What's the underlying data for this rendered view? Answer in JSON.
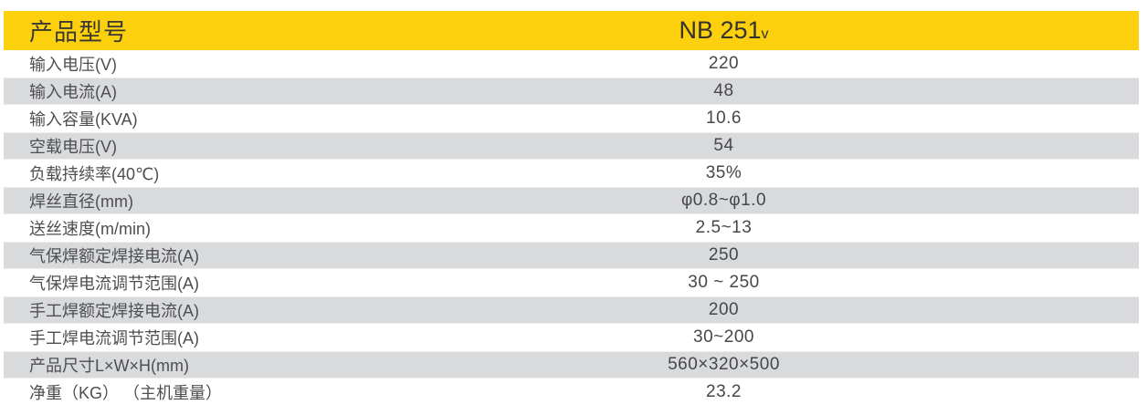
{
  "table": {
    "header": {
      "label": "产品型号",
      "model": "NB 251",
      "model_suffix": "v"
    },
    "rows": [
      {
        "label": "输入电压(V)",
        "value": "220"
      },
      {
        "label": "输入电流(A)",
        "value": "48"
      },
      {
        "label": "输入容量(KVA)",
        "value": "10.6"
      },
      {
        "label": "空载电压(V)",
        "value": "54"
      },
      {
        "label": "负载持续率(40℃)",
        "value": "35%"
      },
      {
        "label": "焊丝直径(mm)",
        "value": "φ0.8~φ1.0"
      },
      {
        "label": "送丝速度(m/min)",
        "value": "2.5~13"
      },
      {
        "label": "气保焊额定焊接电流(A)",
        "value": "250"
      },
      {
        "label": "气保焊电流调节范围(A)",
        "value": "30 ~ 250"
      },
      {
        "label": "手工焊额定焊接电流(A)",
        "value": "200"
      },
      {
        "label": "手工焊电流调节范围(A)",
        "value": "30~200"
      },
      {
        "label": "产品尺寸L×W×H(mm)",
        "value": "560×320×500"
      },
      {
        "label": "净重（KG） （主机重量）",
        "value": "23.2"
      }
    ],
    "colors": {
      "header_bg": "#FDD00D",
      "row_alt_bg": "#D9DADC",
      "header_text": "#3A3931",
      "row_text": "#4D4E50"
    }
  }
}
